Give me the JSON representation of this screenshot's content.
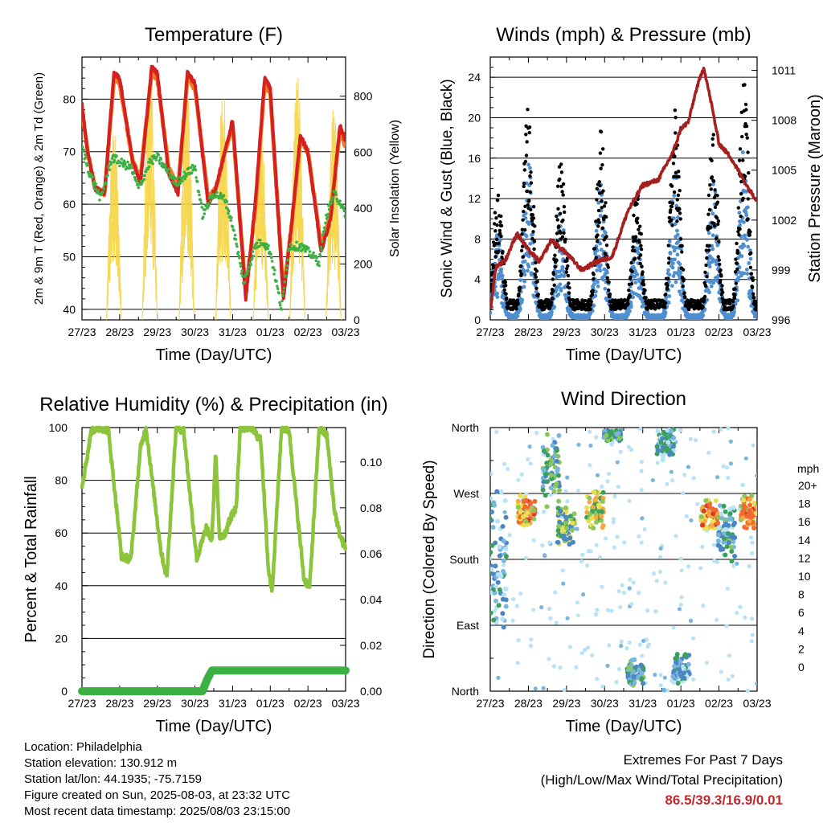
{
  "x_ticks": [
    "27/23",
    "28/23",
    "29/23",
    "30/23",
    "31/23",
    "01/23",
    "02/23",
    "03/23"
  ],
  "colors": {
    "red": "#d42020",
    "orange": "#f07a22",
    "green": "#3cb043",
    "yellow": "#f5d442",
    "blue": "#4f8fd0",
    "black": "#000000",
    "maroon": "#a51f1f",
    "rh_green": "#8cc43c",
    "precip_green": "#3cb043"
  },
  "wind_speed_scale": {
    "unit": "mph",
    "labels": [
      "20+",
      "18",
      "16",
      "14",
      "12",
      "10",
      "8",
      "6",
      "4",
      "2",
      "0"
    ],
    "colors": [
      "#9a1515",
      "#c62020",
      "#e03a2a",
      "#f0692e",
      "#f7a845",
      "#e9df50",
      "#8cc55a",
      "#3aa05a",
      "#4a86c4",
      "#7ab5e0",
      "#b8e2f5"
    ]
  },
  "chart_data": [
    {
      "type": "line",
      "title": "Temperature (F)",
      "xlabel": "Time (Day/UTC)",
      "ylabel": "2m & 9m T (Red, Orange) & 2m Td (Green)",
      "y2label": "Solar Insolation (Yellow)",
      "x_range_days": [
        0,
        7
      ],
      "ylim": [
        38,
        88
      ],
      "y_ticks": [
        40,
        50,
        60,
        70,
        80
      ],
      "y2lim": [
        0,
        940
      ],
      "y2_ticks": [
        0,
        200,
        400,
        600,
        800
      ],
      "grid": "horizontal",
      "series": [
        {
          "name": "2m T",
          "color_key": "red",
          "x": [
            0,
            0.15,
            0.35,
            0.6,
            0.85,
            1.0,
            1.35,
            1.55,
            1.85,
            2.0,
            2.3,
            2.55,
            2.8,
            3.0,
            3.35,
            3.55,
            3.8,
            4.0,
            4.35,
            4.6,
            4.85,
            5.0,
            5.35,
            5.55,
            5.8,
            6.0,
            6.35,
            6.6,
            6.85,
            7.0
          ],
          "y": [
            79,
            70,
            63,
            62,
            85,
            84,
            68,
            64,
            86,
            85,
            66,
            62,
            85,
            83,
            60,
            63,
            70,
            76,
            42,
            60,
            84,
            82,
            42,
            55,
            73,
            70,
            51,
            57,
            75,
            72
          ]
        },
        {
          "name": "9m T",
          "color_key": "orange",
          "x": [
            0,
            0.15,
            0.35,
            0.6,
            0.85,
            1.0,
            1.35,
            1.55,
            1.85,
            2.0,
            2.3,
            2.55,
            2.8,
            3.0,
            3.35,
            3.55,
            3.8,
            4.0,
            4.35,
            4.6,
            4.85,
            5.0,
            5.35,
            5.55,
            5.8,
            6.0,
            6.35,
            6.6,
            6.85,
            7.0
          ],
          "y": [
            78,
            70,
            63,
            62,
            84,
            83,
            68,
            65,
            85,
            84,
            67,
            63,
            84,
            82,
            61,
            63,
            70,
            75,
            43,
            59,
            83,
            81,
            43,
            55,
            72,
            70,
            52,
            58,
            74,
            71
          ]
        },
        {
          "name": "2m Td",
          "color_key": "green",
          "x": [
            0,
            0.2,
            0.5,
            0.8,
            1.0,
            1.3,
            1.5,
            1.8,
            2.0,
            2.3,
            2.5,
            2.8,
            3.0,
            3.2,
            3.5,
            3.8,
            4.0,
            4.3,
            4.6,
            4.8,
            5.0,
            5.3,
            5.5,
            5.8,
            6.0,
            6.3,
            6.5,
            6.7,
            6.9,
            7.0
          ],
          "y": [
            71,
            66,
            61,
            69,
            68,
            67,
            63,
            68,
            69,
            66,
            64,
            66,
            67,
            58,
            62,
            61,
            56,
            45,
            52,
            53,
            51,
            40,
            52,
            52,
            51,
            49,
            58,
            62,
            60,
            57
          ]
        },
        {
          "name": "Solar Insolation",
          "color_key": "yellow",
          "axis": "y2",
          "peak_x": [
            0.85,
            1.8,
            2.78,
            3.75,
            4.75,
            5.72,
            6.68
          ],
          "peak_y": [
            700,
            910,
            880,
            840,
            720,
            920,
            780
          ],
          "width_days": 0.4
        }
      ]
    },
    {
      "type": "line",
      "title": "Winds (mph) & Pressure (mb)",
      "xlabel": "Time (Day/UTC)",
      "ylabel": "Sonic Wind & Gust (Blue, Black)",
      "y2label": "Station Pressure (Maroon)",
      "x_range_days": [
        0,
        7
      ],
      "ylim": [
        0,
        26
      ],
      "y_ticks": [
        0,
        4,
        8,
        12,
        16,
        20,
        24
      ],
      "y2lim": [
        996,
        1011.8
      ],
      "y2_ticks": [
        996,
        999,
        1002,
        1005,
        1008,
        1011
      ],
      "grid": "horizontal",
      "series": [
        {
          "name": "Gust",
          "color_key": "black",
          "peak_x": [
            0.2,
            1.0,
            1.85,
            2.9,
            3.85,
            4.85,
            5.85,
            6.65
          ],
          "peak_y": [
            13,
            22,
            16,
            19,
            13,
            21,
            19,
            24
          ],
          "base": 2
        },
        {
          "name": "Sonic Wind",
          "color_key": "blue",
          "peak_x": [
            0.2,
            1.0,
            1.85,
            2.9,
            3.85,
            4.85,
            5.85,
            6.65
          ],
          "peak_y": [
            9,
            16,
            11,
            14,
            9,
            15,
            14,
            17
          ],
          "base": 0.5
        },
        {
          "name": "Station Pressure",
          "color_key": "maroon",
          "axis": "y2",
          "x": [
            0,
            0.15,
            0.4,
            0.7,
            1.0,
            1.3,
            1.6,
            2.0,
            2.4,
            2.8,
            3.2,
            3.6,
            4.0,
            4.4,
            4.8,
            5.0,
            5.2,
            5.4,
            5.6,
            5.8,
            6.0,
            6.3,
            6.6,
            6.8,
            7.0
          ],
          "y": [
            996.6,
            999.2,
            999.6,
            1001.2,
            1000.2,
            999.5,
            1000.8,
            1000.0,
            999.0,
            999.5,
            999.8,
            1002.5,
            1004.1,
            1004.4,
            1006.1,
            1007.5,
            1007.9,
            1009.8,
            1011.2,
            1009.0,
            1006.6,
            1005.8,
            1004.6,
            1003.8,
            1003.2
          ]
        }
      ]
    },
    {
      "type": "line",
      "title": "Relative Humidity (%) & Precipitation (in)",
      "xlabel": "Time (Day/UTC)",
      "ylabel": "Percent & Total Rainfall",
      "x_range_days": [
        0,
        7
      ],
      "ylim": [
        0,
        100
      ],
      "y_ticks": [
        0,
        20,
        40,
        60,
        80,
        100
      ],
      "y2lim": [
        0,
        0.115
      ],
      "y2_ticks": [
        "0.00",
        "0.02",
        "0.04",
        "0.06",
        "0.08",
        "0.10"
      ],
      "grid": "horizontal",
      "series": [
        {
          "name": "Relative Humidity",
          "color_key": "rh_green",
          "x": [
            0,
            0.15,
            0.25,
            0.5,
            0.7,
            0.9,
            1.05,
            1.3,
            1.55,
            1.7,
            1.9,
            2.1,
            2.25,
            2.5,
            2.7,
            2.9,
            3.05,
            3.3,
            3.45,
            3.55,
            3.65,
            3.8,
            3.95,
            4.1,
            4.2,
            4.5,
            4.75,
            4.95,
            5.05,
            5.3,
            5.5,
            5.7,
            5.9,
            6.05,
            6.3,
            6.5,
            6.7,
            6.85,
            7.0
          ],
          "y": [
            78,
            90,
            99,
            100,
            99,
            72,
            51,
            50,
            92,
            100,
            76,
            53,
            43,
            100,
            99,
            70,
            50,
            62,
            57,
            91,
            58,
            60,
            66,
            70,
            100,
            100,
            95,
            46,
            38,
            100,
            99,
            70,
            42,
            40,
            100,
            97,
            69,
            59,
            54
          ]
        },
        {
          "name": "Total Precipitation",
          "color_key": "precip_green",
          "axis": "y2",
          "x": [
            0,
            3.2,
            3.32,
            3.45,
            7.0
          ],
          "y": [
            0.0,
            0.0,
            0.005,
            0.009,
            0.009
          ]
        }
      ]
    },
    {
      "type": "scatter",
      "title": "Wind Direction",
      "xlabel": "Time (Day/UTC)",
      "ylabel": "Direction (Colored By Speed)",
      "x_range_days": [
        0,
        7
      ],
      "ylim": [
        0,
        360
      ],
      "y_tick_labels": [
        "North",
        "East",
        "South",
        "West",
        "North"
      ],
      "grid": "horizontal",
      "clusters": [
        {
          "x": 0.2,
          "dir_mean": 180,
          "dir_spread": 100,
          "speed": 3
        },
        {
          "x": 0.95,
          "dir_mean": 245,
          "dir_spread": 25,
          "speed": 13
        },
        {
          "x": 1.6,
          "dir_mean": 300,
          "dir_spread": 55,
          "speed": 6
        },
        {
          "x": 2.0,
          "dir_mean": 225,
          "dir_spread": 30,
          "speed": 8
        },
        {
          "x": 2.75,
          "dir_mean": 250,
          "dir_spread": 30,
          "speed": 10
        },
        {
          "x": 3.2,
          "dir_mean": 350,
          "dir_spread": 10,
          "speed": 6
        },
        {
          "x": 3.8,
          "dir_mean": 25,
          "dir_spread": 22,
          "speed": 6
        },
        {
          "x": 4.6,
          "dir_mean": 340,
          "dir_spread": 25,
          "speed": 4
        },
        {
          "x": 5.0,
          "dir_mean": 30,
          "dir_spread": 25,
          "speed": 4
        },
        {
          "x": 5.75,
          "dir_mean": 240,
          "dir_spread": 25,
          "speed": 13
        },
        {
          "x": 6.2,
          "dir_mean": 220,
          "dir_spread": 45,
          "speed": 5
        },
        {
          "x": 6.8,
          "dir_mean": 245,
          "dir_spread": 25,
          "speed": 13
        }
      ]
    }
  ],
  "station_info": {
    "location": "Location: Philadelphia",
    "elevation": "Station elevation: 130.912 m",
    "latlon": "Station lat/lon: 44.1935; -75.7159",
    "created": "Figure created on Sun, 2025-08-03, at 23:32 UTC",
    "recent": "Most recent data timestamp: 2025/08/03 23:15:00"
  },
  "extremes": {
    "title": "Extremes For Past 7 Days",
    "subtitle": "(High/Low/Max Wind/Total Precipitation)",
    "values": "86.5/39.3/16.9/0.01"
  }
}
